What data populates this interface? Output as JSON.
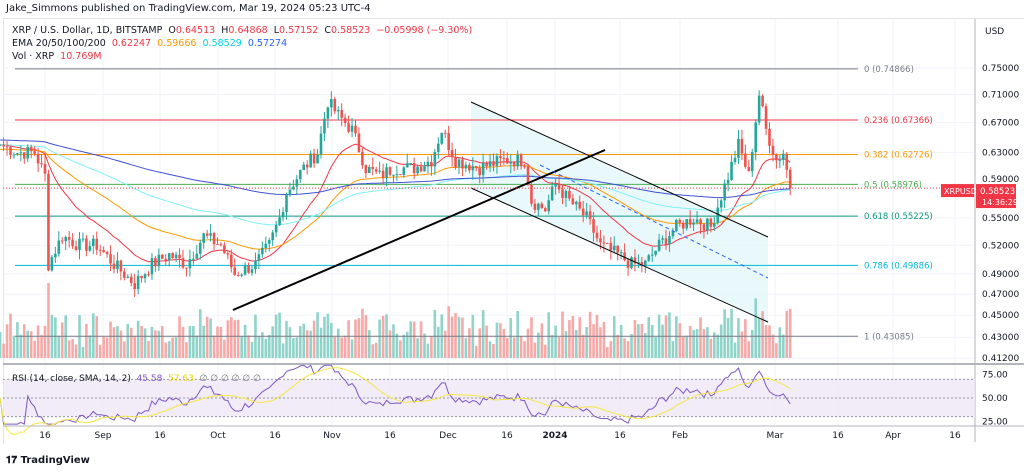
{
  "publisher_line": "Jake_Simmons published on TradingView.com, Mar 19, 2024 05:23 UTC-4",
  "legend": {
    "symbol": "XRP / U.S. Dollar, 1D, BITSTAMP",
    "o_label": "O",
    "o": "0.64513",
    "h_label": "H",
    "h": "0.64868",
    "l_label": "L",
    "l": "0.57152",
    "c_label": "C",
    "c": "0.58523",
    "change": "−0.05998 (−9.30%)",
    "ema_label": "EMA 20/50/100/200",
    "ema": [
      "0.62247",
      "0.59666",
      "0.58529",
      "0.57274"
    ],
    "ema_colors": [
      "#f23645",
      "#ff9800",
      "#00e5ff",
      "#2962ff"
    ],
    "vol_label": "Vol · XRP",
    "vol": "10.769M"
  },
  "price_axis": {
    "currency": "USD",
    "ticks": [
      "0.75000",
      "0.71000",
      "0.67000",
      "0.63000",
      "0.59000",
      "0.55000",
      "0.52000",
      "0.49000",
      "0.47000",
      "0.45000",
      "0.43000",
      "0.41200"
    ],
    "last": {
      "symbol": "XRPUSD",
      "price": "0.58523",
      "countdown": "14:36:29",
      "color": "#f23645"
    }
  },
  "fib": [
    {
      "label": "0 (0.74866)",
      "level": 0.74866,
      "color": "#787b86"
    },
    {
      "label": "0.236 (0.67366)",
      "level": 0.67366,
      "color": "#f23645"
    },
    {
      "label": "0.382 (0.62726)",
      "level": 0.62726,
      "color": "#ff9800"
    },
    {
      "label": "0.5 (0.58976)",
      "level": 0.58976,
      "color": "#4caf50"
    },
    {
      "label": "0.618 (0.55225)",
      "level": 0.55225,
      "color": "#089981"
    },
    {
      "label": "0.786 (0.49886)",
      "level": 0.49886,
      "color": "#00bcd4"
    },
    {
      "label": "1 (0.43085)",
      "level": 0.43085,
      "color": "#787b86"
    }
  ],
  "rsi": {
    "label": "RSI (14, close, SMA, 14, 2)",
    "value": "45.58",
    "sma": "57.63",
    "na": "∅ ∅ ∅ ∅ ∅ ∅",
    "ticks": [
      "75.00",
      "50.00",
      "25.00"
    ]
  },
  "time_axis": [
    "16",
    "Sep",
    "16",
    "Oct",
    "16",
    "Nov",
    "16",
    "Dec",
    "16",
    "2024",
    "16",
    "Feb",
    "Mar",
    "16",
    "Apr",
    "16"
  ],
  "chart_data": {
    "type": "candlestick",
    "scale": "log",
    "ylim": [
      0.412,
      0.76
    ],
    "x_start": "2023-08-03",
    "x_end": "2024-03-19",
    "closes": [
      [
        "2023-08-03",
        0.64
      ],
      [
        "2023-08-08",
        0.63
      ],
      [
        "2023-08-13",
        0.63
      ],
      [
        "2023-08-16",
        0.6
      ],
      [
        "2023-08-17",
        0.5
      ],
      [
        "2023-08-21",
        0.53
      ],
      [
        "2023-08-26",
        0.52
      ],
      [
        "2023-08-31",
        0.52
      ],
      [
        "2023-09-05",
        0.5
      ],
      [
        "2023-09-11",
        0.48
      ],
      [
        "2023-09-16",
        0.5
      ],
      [
        "2023-09-21",
        0.51
      ],
      [
        "2023-09-26",
        0.5
      ],
      [
        "2023-10-01",
        0.53
      ],
      [
        "2023-10-06",
        0.52
      ],
      [
        "2023-10-10",
        0.49
      ],
      [
        "2023-10-16",
        0.5
      ],
      [
        "2023-10-20",
        0.52
      ],
      [
        "2023-10-23",
        0.55
      ],
      [
        "2023-10-25",
        0.58
      ],
      [
        "2023-10-30",
        0.61
      ],
      [
        "2023-11-03",
        0.63
      ],
      [
        "2023-11-06",
        0.7
      ],
      [
        "2023-11-09",
        0.68
      ],
      [
        "2023-11-13",
        0.66
      ],
      [
        "2023-11-17",
        0.61
      ],
      [
        "2023-11-21",
        0.6
      ],
      [
        "2023-11-25",
        0.61
      ],
      [
        "2023-12-01",
        0.61
      ],
      [
        "2023-12-06",
        0.62
      ],
      [
        "2023-12-09",
        0.66
      ],
      [
        "2023-12-13",
        0.62
      ],
      [
        "2023-12-20",
        0.61
      ],
      [
        "2023-12-27",
        0.62
      ],
      [
        "2024-01-02",
        0.62
      ],
      [
        "2024-01-04",
        0.57
      ],
      [
        "2024-01-08",
        0.56
      ],
      [
        "2024-01-11",
        0.59
      ],
      [
        "2024-01-15",
        0.57
      ],
      [
        "2024-01-20",
        0.55
      ],
      [
        "2024-01-24",
        0.52
      ],
      [
        "2024-01-29",
        0.51
      ],
      [
        "2024-02-02",
        0.5
      ],
      [
        "2024-02-06",
        0.5
      ],
      [
        "2024-02-10",
        0.52
      ],
      [
        "2024-02-15",
        0.54
      ],
      [
        "2024-02-20",
        0.55
      ],
      [
        "2024-02-25",
        0.54
      ],
      [
        "2024-03-01",
        0.6
      ],
      [
        "2024-03-04",
        0.64
      ],
      [
        "2024-03-07",
        0.6
      ],
      [
        "2024-03-10",
        0.71
      ],
      [
        "2024-03-12",
        0.66
      ],
      [
        "2024-03-15",
        0.62
      ],
      [
        "2024-03-17",
        0.63
      ],
      [
        "2024-03-19",
        0.585
      ]
    ]
  },
  "footer": {
    "brand": "TradingView"
  }
}
